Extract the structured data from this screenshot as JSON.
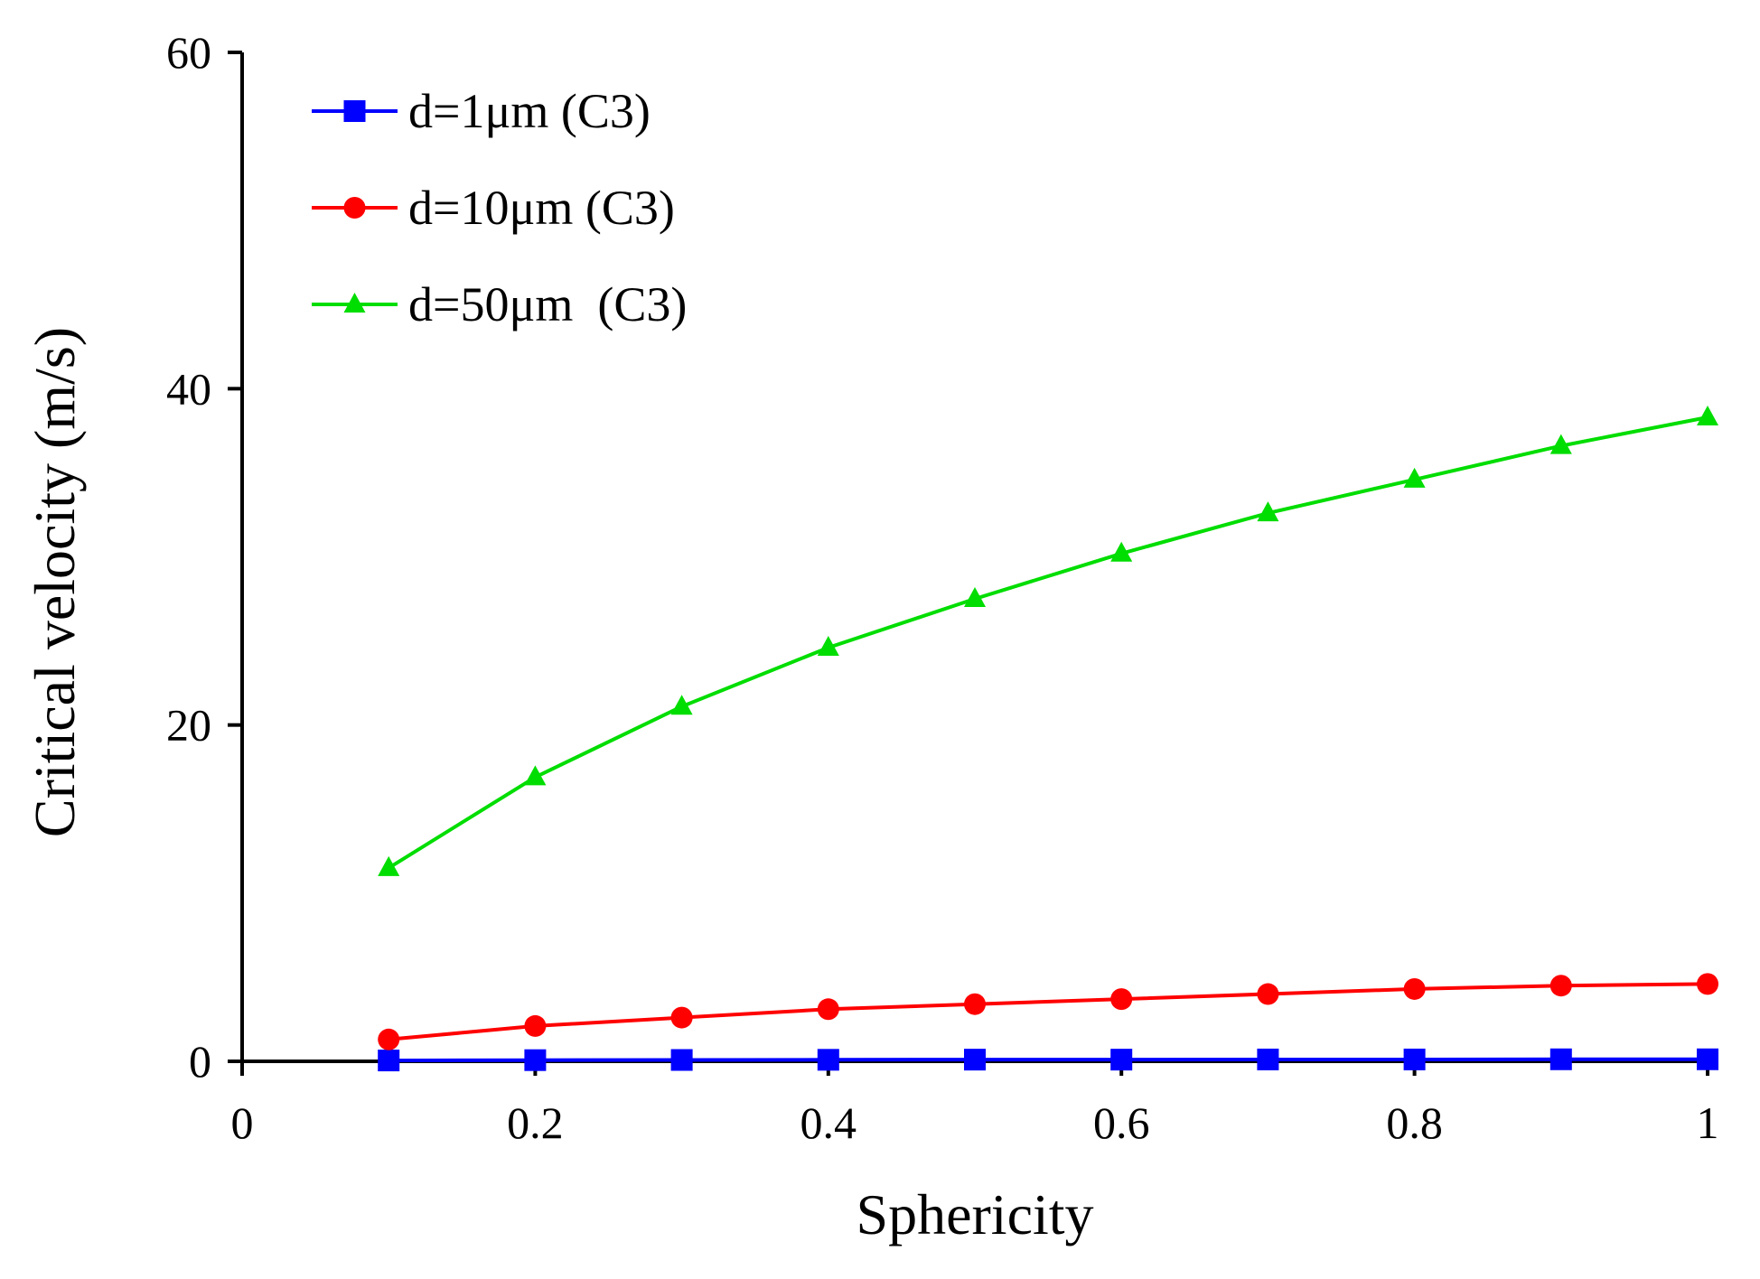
{
  "chart_data": {
    "type": "line",
    "title": "",
    "xlabel": "Sphericity",
    "ylabel": "Critical velocity (m/s)",
    "xlim": [
      0,
      1
    ],
    "ylim": [
      0,
      60
    ],
    "xticks": [
      0,
      0.2,
      0.4,
      0.6,
      0.8,
      1
    ],
    "xtick_labels": [
      "0",
      "0.2",
      "0.4",
      "0.6",
      "0.8",
      "1"
    ],
    "yticks": [
      0,
      20,
      40,
      60
    ],
    "ytick_labels": [
      "0",
      "20",
      "40",
      "60"
    ],
    "grid": false,
    "legend_position": "top-left",
    "x": [
      0.1,
      0.2,
      0.3,
      0.4,
      0.5,
      0.6,
      0.7,
      0.8,
      0.9,
      1.0
    ],
    "series": [
      {
        "name": "d=1μm (C3)",
        "color": "#0000ff",
        "marker": "square",
        "values": [
          0.05,
          0.07,
          0.08,
          0.09,
          0.1,
          0.1,
          0.11,
          0.11,
          0.12,
          0.12
        ]
      },
      {
        "name": "d=10μm (C3)",
        "color": "#ff0000",
        "marker": "circle",
        "values": [
          1.3,
          2.1,
          2.6,
          3.1,
          3.4,
          3.7,
          4.0,
          4.3,
          4.5,
          4.6
        ]
      },
      {
        "name": "d=50μm  (C3)",
        "color": "#00dd00",
        "marker": "triangle",
        "values": [
          11.5,
          16.9,
          21.1,
          24.6,
          27.5,
          30.2,
          32.6,
          34.6,
          36.6,
          38.3
        ]
      }
    ]
  }
}
